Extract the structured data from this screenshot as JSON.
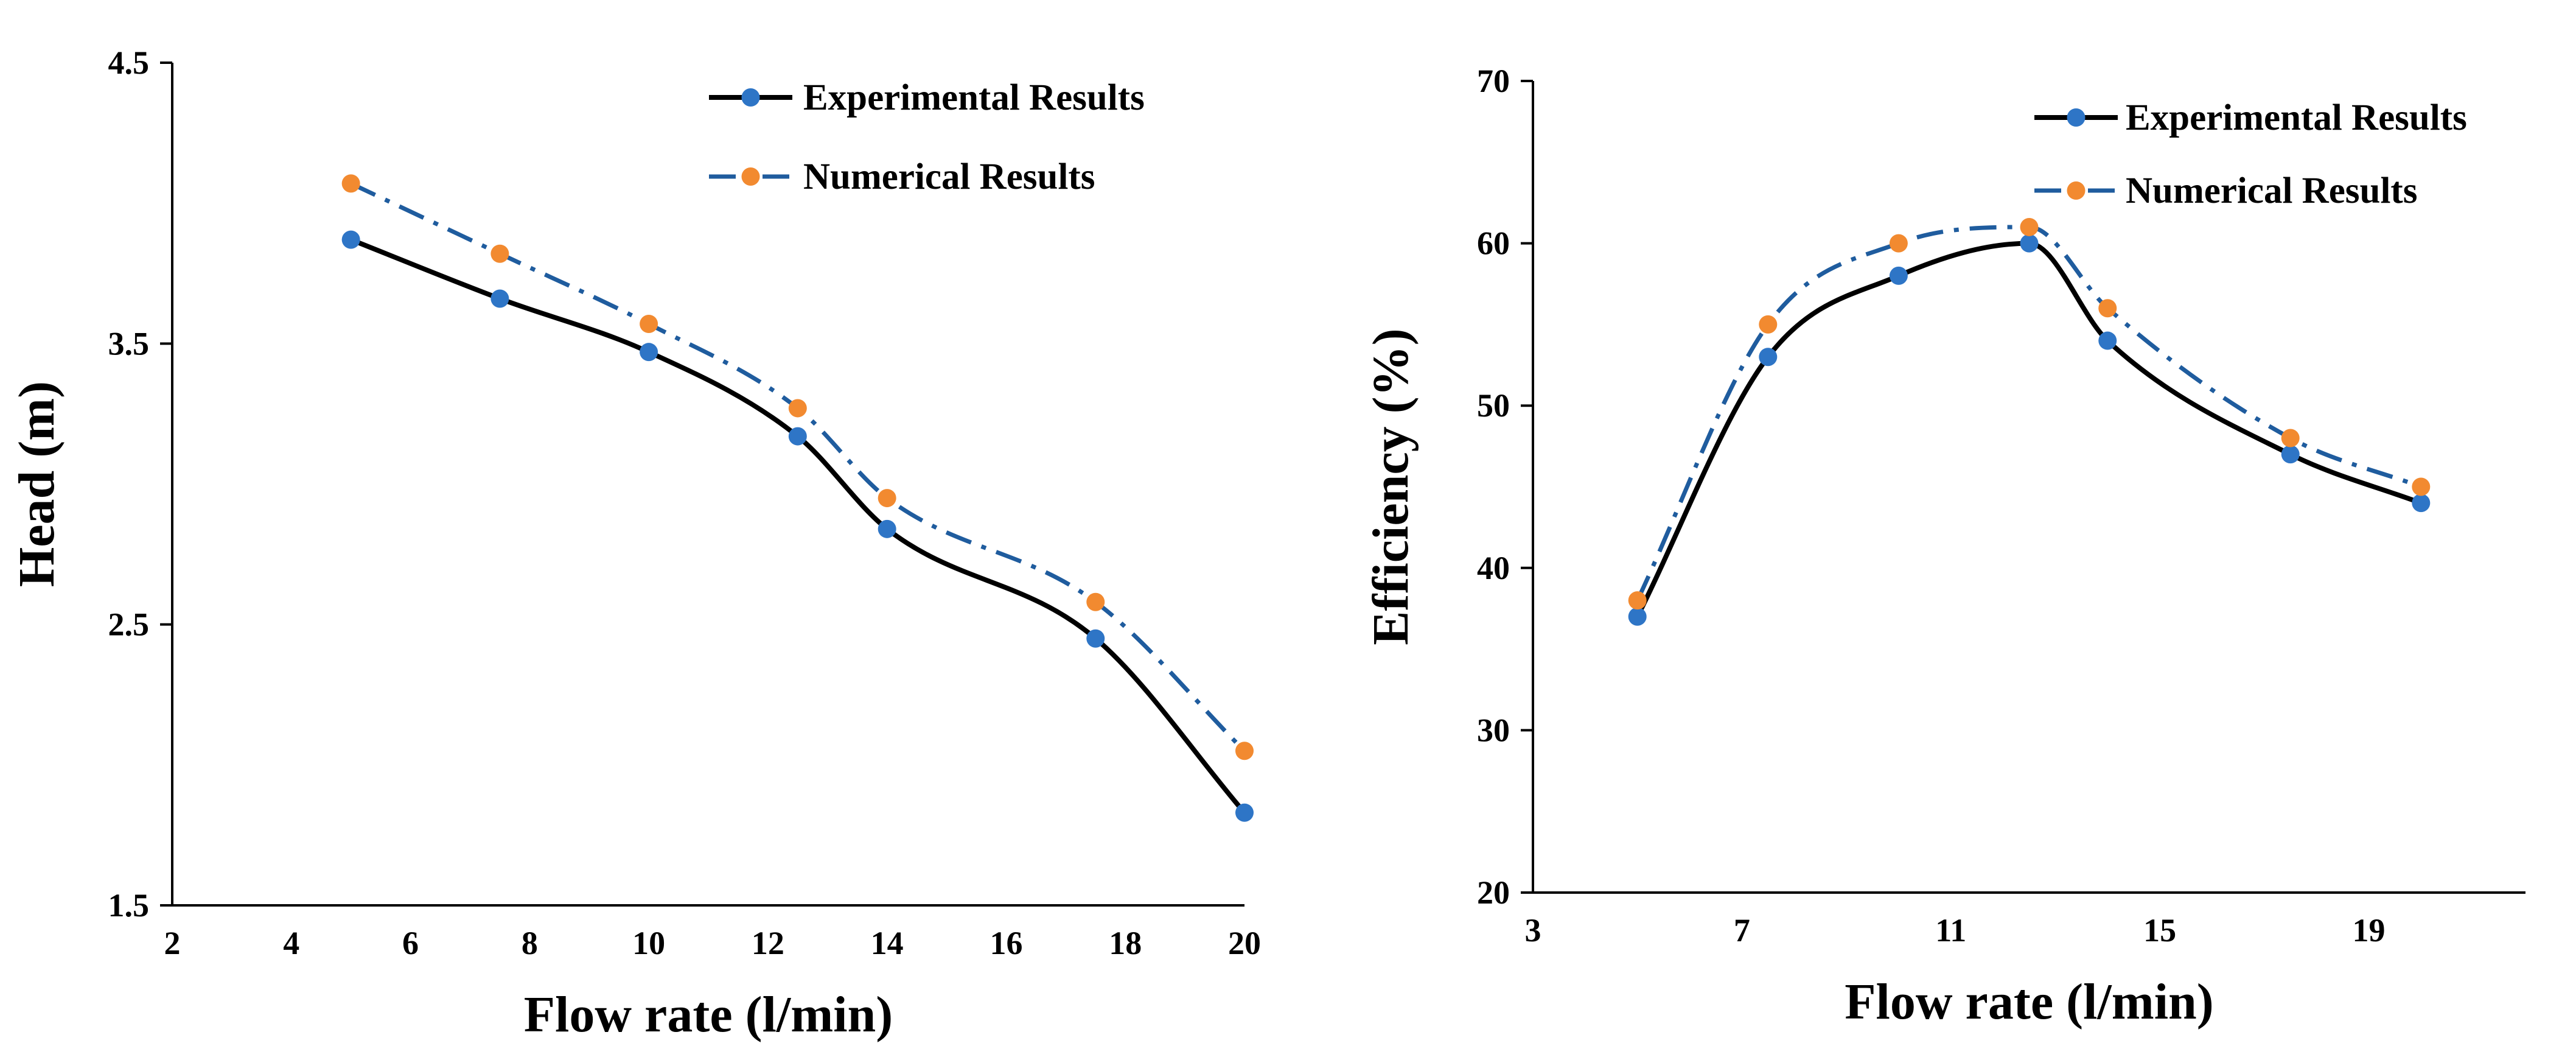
{
  "chart_data": [
    {
      "type": "line",
      "title": "",
      "xlabel": "Flow rate (l/min)",
      "ylabel": "Head (m)",
      "xlim": [
        2,
        20
      ],
      "ylim": [
        1.5,
        4.5
      ],
      "xticks": [
        2,
        4,
        6,
        8,
        10,
        12,
        14,
        16,
        18,
        20
      ],
      "yticks": [
        1.5,
        2.5,
        3.5,
        4.5
      ],
      "x_tick_labels": [
        "2",
        "4",
        "6",
        "8",
        "10",
        "12",
        "14",
        "16",
        "18",
        "20"
      ],
      "y_tick_labels": [
        "1.5",
        "2.5",
        "3.5",
        "4.5"
      ],
      "grid": false,
      "legend": "top-right",
      "series": [
        {
          "name": "Experimental Results",
          "line_color": "#000000",
          "marker_color": "#2E75C6",
          "dash": "solid",
          "x": [
            5,
            7.5,
            10,
            12.5,
            14,
            17.5,
            20
          ],
          "y": [
            3.87,
            3.66,
            3.47,
            3.17,
            2.84,
            2.45,
            1.83
          ]
        },
        {
          "name": "Numerical Results",
          "line_color": "#1F5C9E",
          "marker_color": "#F28A30",
          "dash": "dashdot",
          "x": [
            5,
            7.5,
            10,
            12.5,
            14,
            17.5,
            20
          ],
          "y": [
            4.07,
            3.82,
            3.57,
            3.27,
            2.95,
            2.58,
            2.05
          ]
        }
      ]
    },
    {
      "type": "line",
      "title": "",
      "xlabel": "Flow rate (l/min)",
      "ylabel": "Efficiency (%)",
      "xlim": [
        3,
        22
      ],
      "ylim": [
        20,
        70
      ],
      "xticks": [
        3,
        7,
        11,
        15,
        19
      ],
      "yticks": [
        20,
        30,
        40,
        50,
        60,
        70
      ],
      "x_tick_labels": [
        "3",
        "7",
        "11",
        "15",
        "19"
      ],
      "y_tick_labels": [
        "20",
        "30",
        "40",
        "50",
        "60",
        "70"
      ],
      "grid": false,
      "legend": "top-right",
      "series": [
        {
          "name": "Experimental Results",
          "line_color": "#000000",
          "marker_color": "#2E75C6",
          "dash": "solid",
          "x": [
            5,
            7.5,
            10,
            12.5,
            14,
            17.5,
            20
          ],
          "y": [
            37,
            53,
            58,
            60,
            54,
            47,
            44
          ]
        },
        {
          "name": "Numerical Results",
          "line_color": "#1F5C9E",
          "marker_color": "#F28A30",
          "dash": "dashdot",
          "x": [
            5,
            7.5,
            10,
            12.5,
            14,
            17.5,
            20
          ],
          "y": [
            38,
            55,
            60,
            61,
            56,
            48,
            45
          ]
        }
      ]
    }
  ]
}
